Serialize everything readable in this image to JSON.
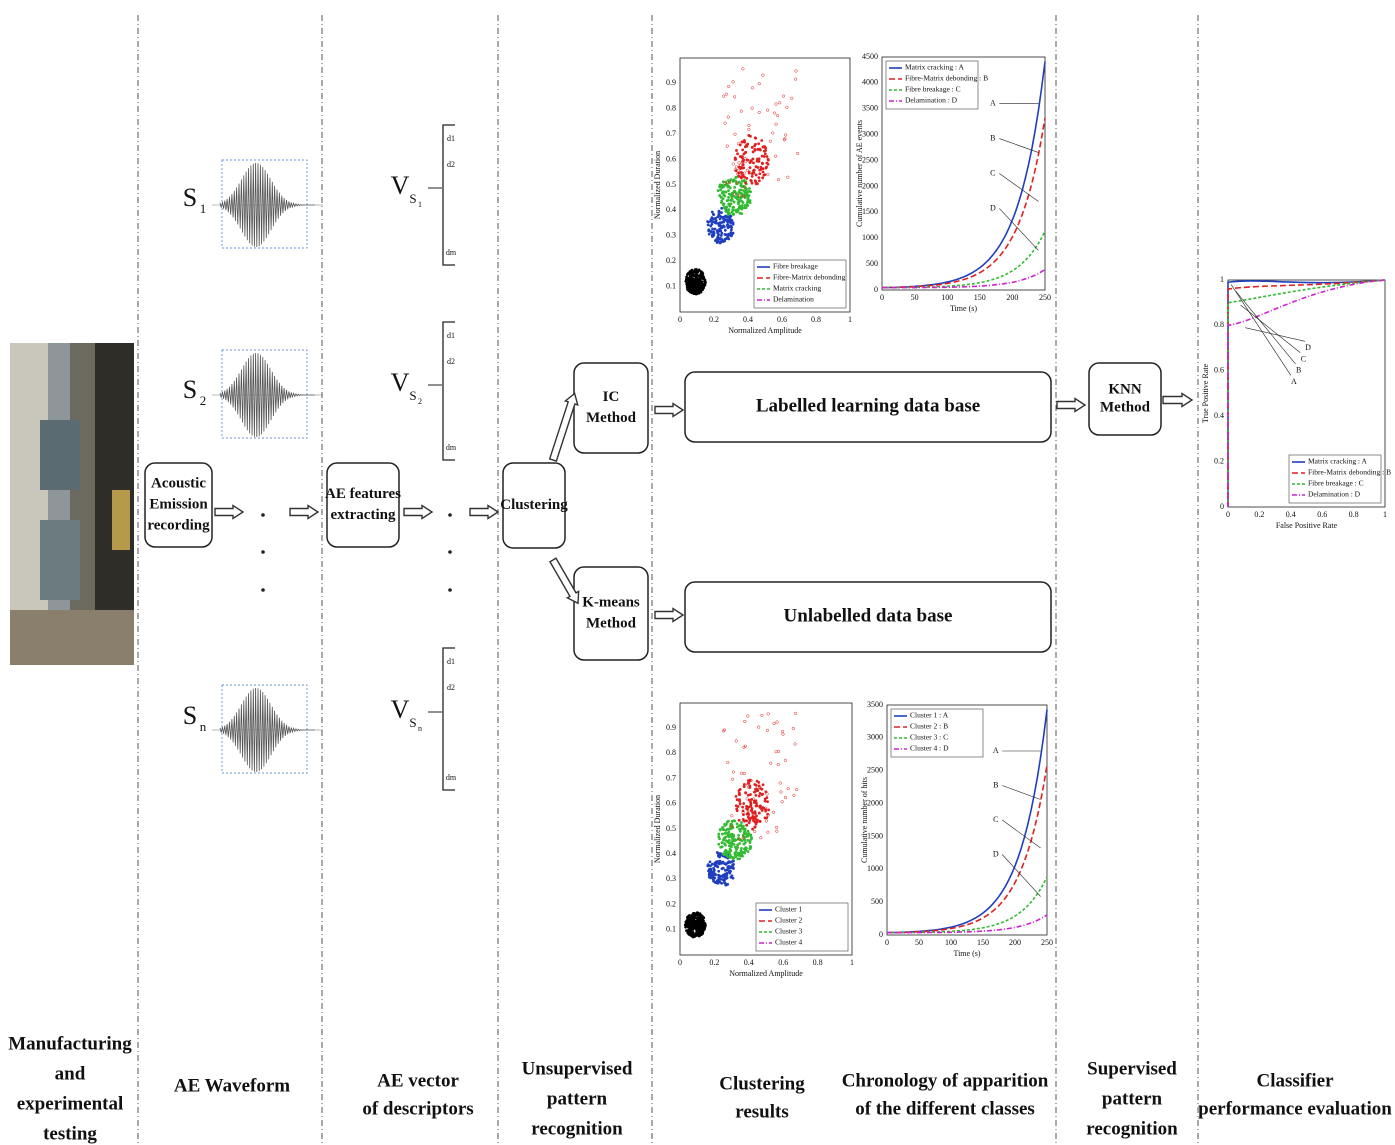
{
  "stages": [
    [
      "Manufacturing",
      "and",
      "experimental",
      "testing"
    ],
    [
      "AE Waveform"
    ],
    [
      "AE vector",
      "of descriptors"
    ],
    [
      "Unsupervised",
      "pattern",
      "recognition"
    ],
    [
      "Clustering",
      "results"
    ],
    [
      "Chronology of apparition",
      "of the different classes"
    ],
    [
      "Supervised",
      "pattern",
      "recognition"
    ],
    [
      "Classifier",
      "performance evaluation"
    ]
  ],
  "boxes": {
    "ae_recording": [
      "Acoustic",
      "Emission",
      "recording"
    ],
    "features": [
      "AE features",
      "extracting"
    ],
    "clustering": [
      "Clustering"
    ],
    "ic": [
      "IC",
      "Method"
    ],
    "kmeans": [
      "K-means",
      "Method"
    ],
    "labelled": [
      "Labelled learning data base"
    ],
    "unlabelled": [
      "Unlabelled data base"
    ],
    "knn": [
      "KNN",
      "Method"
    ]
  },
  "signals": [
    {
      "symbol": "S",
      "sub": "1"
    },
    {
      "symbol": "S",
      "sub": "2"
    },
    {
      "symbol": "S",
      "sub": "n"
    }
  ],
  "vectors": [
    {
      "symbol": "V",
      "sub": "S",
      "subsub": "1"
    },
    {
      "symbol": "V",
      "sub": "S",
      "subsub": "2"
    },
    {
      "symbol": "V",
      "sub": "S",
      "subsub": "n"
    }
  ],
  "descriptors": [
    "d1",
    "d2",
    "dm"
  ],
  "plots": [
    {
      "kind": "scatter",
      "x_label": "Normalized Amplitude",
      "y_label": "Normalized Duration",
      "xticks": [
        "0",
        "0.2",
        "0.4",
        "0.6",
        "0.8",
        "1"
      ],
      "yticks": [
        "0.1",
        "0.2",
        "0.3",
        "0.4",
        "0.5",
        "0.6",
        "0.7",
        "0.8",
        "0.9"
      ],
      "legend": [
        "Fibre breakage",
        "Fibre-Matrix debonding",
        "Matrix cracking",
        "Delamination"
      ]
    },
    {
      "kind": "line",
      "x_label": "Time (s)",
      "y_label": "Cumulative number of AE events",
      "xticks": [
        "0",
        "50",
        "100",
        "150",
        "200",
        "250"
      ],
      "yticks": [
        "0",
        "500",
        "1000",
        "1500",
        "2000",
        "2500",
        "3000",
        "3500",
        "4000",
        "4500"
      ],
      "legend": [
        "Matrix cracking : A",
        "Fibre-Matrix debonding : B",
        "Fibre breakage : C",
        "Delamination : D"
      ],
      "annotations": [
        "A",
        "B",
        "C",
        "D"
      ]
    },
    {
      "kind": "scatter",
      "x_label": "Normalized Amplitude",
      "y_label": "Normalized Duration",
      "xticks": [
        "0",
        "0.2",
        "0.4",
        "0.6",
        "0.8",
        "1"
      ],
      "yticks": [
        "0.1",
        "0.2",
        "0.3",
        "0.4",
        "0.5",
        "0.6",
        "0.7",
        "0.8",
        "0.9"
      ],
      "legend": [
        "Cluster 1",
        "Cluster 2",
        "Cluster 3",
        "Cluster 4"
      ]
    },
    {
      "kind": "line",
      "x_label": "Time (s)",
      "y_label": "Cumulative number of hits",
      "xticks": [
        "0",
        "50",
        "100",
        "150",
        "200",
        "250"
      ],
      "yticks": [
        "0",
        "500",
        "1000",
        "1500",
        "2000",
        "2500",
        "3000",
        "3500"
      ],
      "legend": [
        "Cluster 1 : A",
        "Cluster 2 : B",
        "Cluster 3 : C",
        "Cluster 4 : D"
      ],
      "annotations": [
        "A",
        "B",
        "C",
        "D"
      ]
    },
    {
      "kind": "roc",
      "x_label": "False Positive Rate",
      "y_label": "True Positive Rate",
      "xticks": [
        "0",
        "0.2",
        "0.4",
        "0.6",
        "0.8",
        "1"
      ],
      "yticks": [
        "0",
        "0.2",
        "0.4",
        "0.6",
        "0.8",
        "1"
      ],
      "legend": [
        "Matrix cracking : A",
        "Fibre-Matrix debonding : B",
        "Fibre breakage : C",
        "Delamination : D"
      ],
      "annotations": [
        "A",
        "B",
        "C",
        "D"
      ]
    }
  ]
}
